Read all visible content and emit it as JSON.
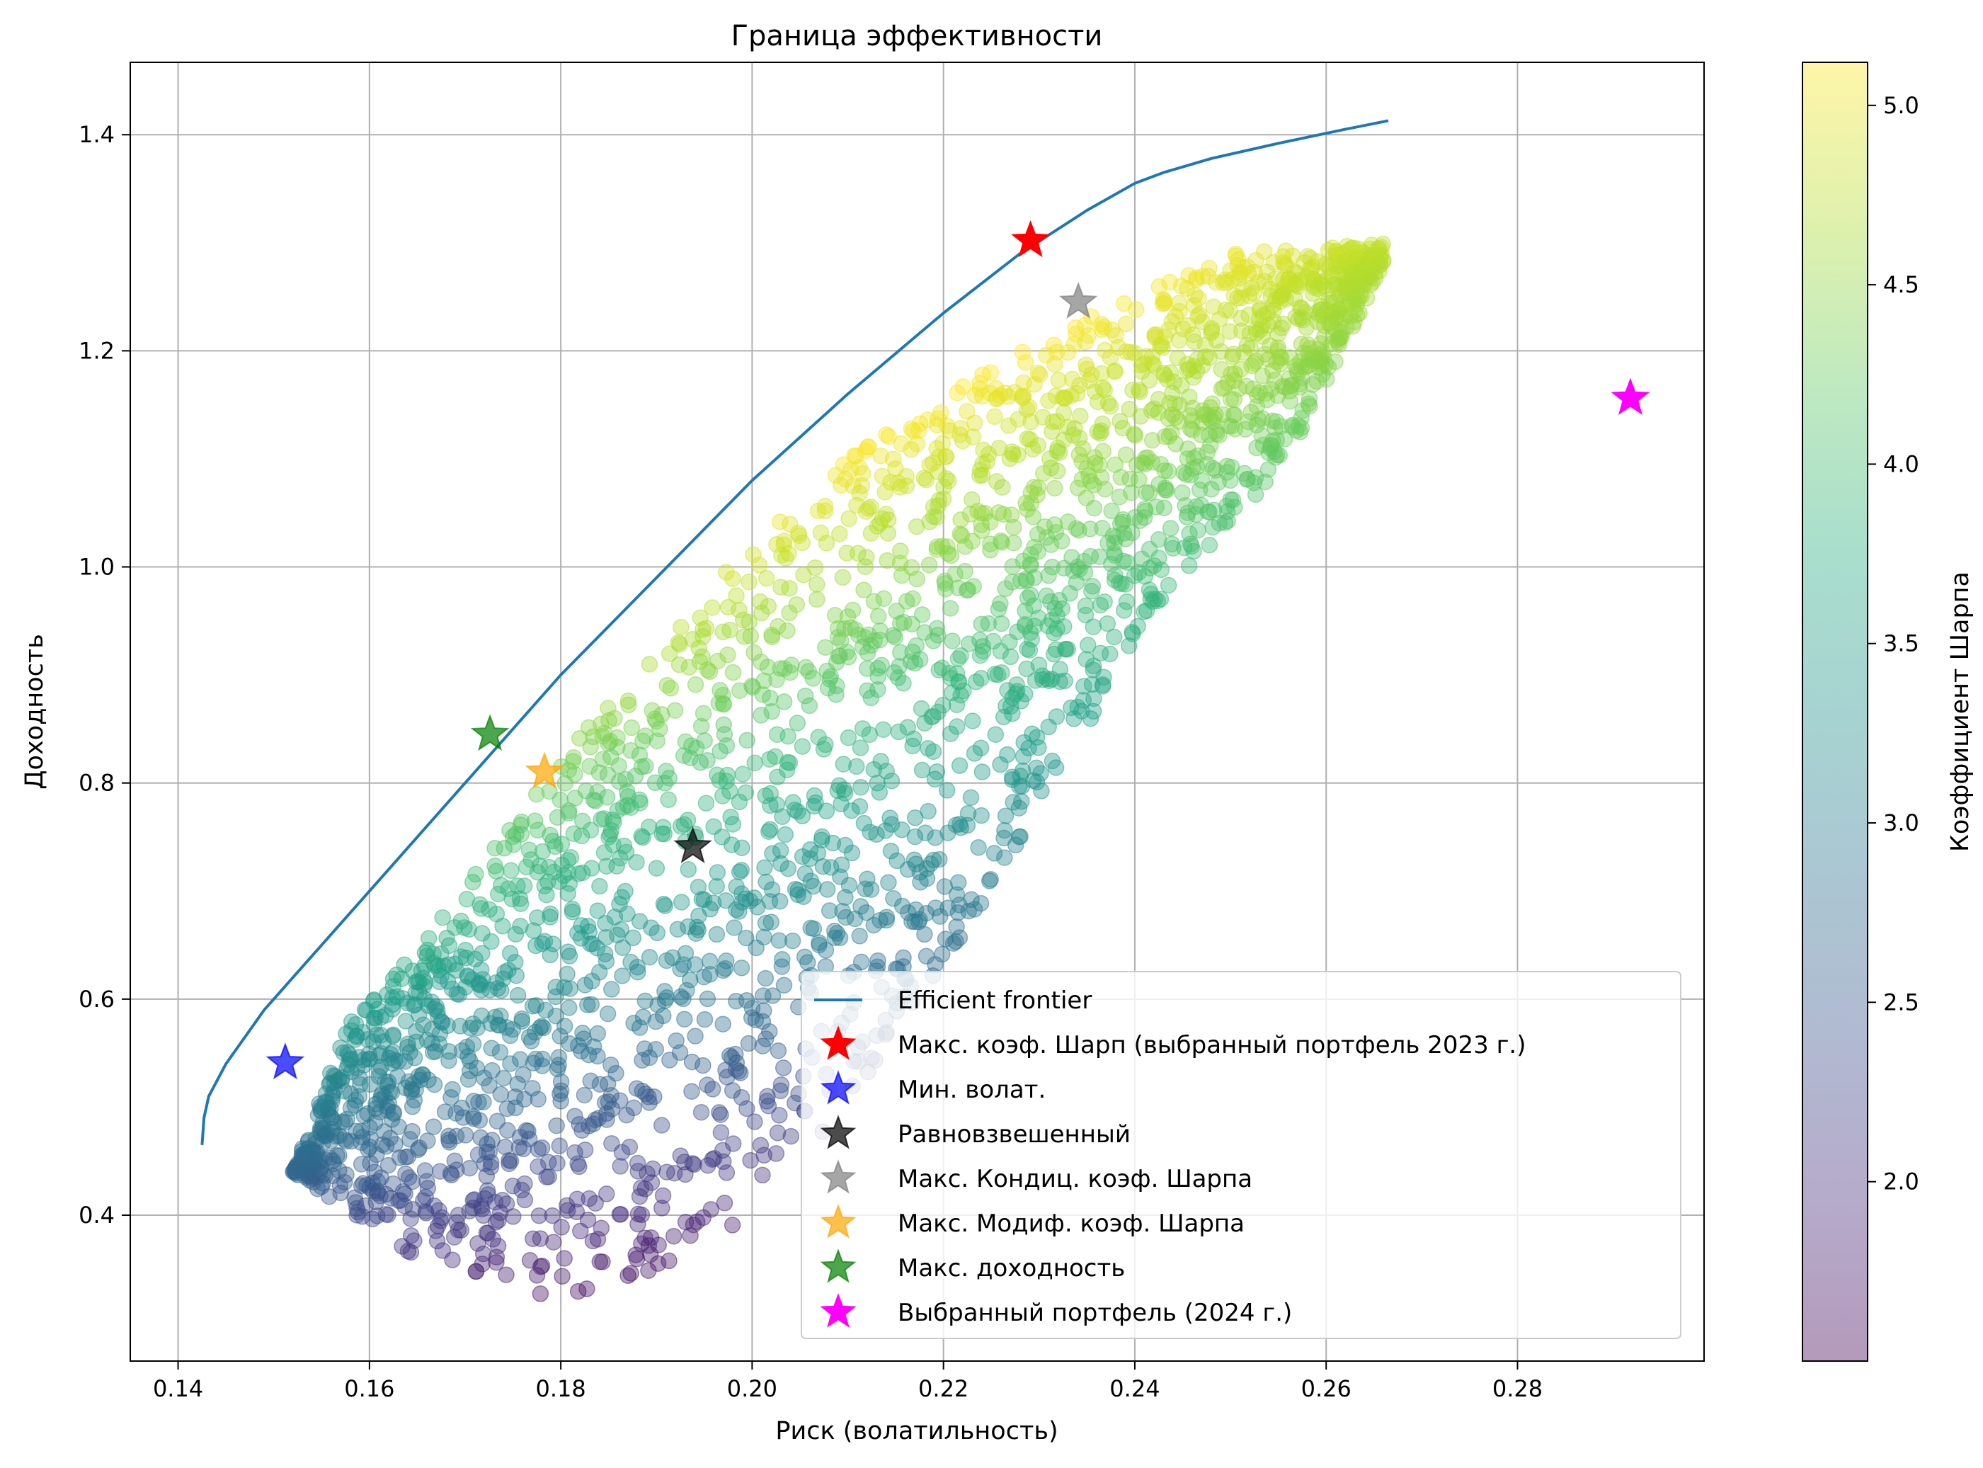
{
  "chart_data": {
    "type": "scatter",
    "title": "Граница эффективности",
    "xlabel": "Риск (волатильность)",
    "ylabel": "Доходность",
    "xlim": [
      0.135,
      0.2995
    ],
    "ylim": [
      0.265,
      1.467
    ],
    "grid": true,
    "x_ticks": [
      "0.14",
      "0.16",
      "0.18",
      "0.20",
      "0.22",
      "0.24",
      "0.26",
      "0.28"
    ],
    "y_ticks": [
      "0.4",
      "0.6",
      "0.8",
      "1.0",
      "1.2",
      "1.4"
    ],
    "colorbar": {
      "label": "Коэффициент Шарпа",
      "colormap": "viridis",
      "alpha": 0.4,
      "range": [
        1.5,
        5.12
      ],
      "ticks": [
        "2.0",
        "2.5",
        "3.0",
        "3.5",
        "4.0",
        "4.5",
        "5.0"
      ]
    },
    "legend_position": "lower right",
    "cloud": {
      "description_lower_boundary_points": [
        [
          0.152,
          0.44
        ],
        [
          0.165,
          0.36
        ],
        [
          0.18,
          0.32
        ],
        [
          0.195,
          0.36
        ],
        [
          0.21,
          0.5
        ],
        [
          0.225,
          0.7
        ],
        [
          0.24,
          0.93
        ],
        [
          0.256,
          1.1
        ],
        [
          0.266,
          1.28
        ]
      ],
      "upper_boundary_points": [
        [
          0.152,
          0.44
        ],
        [
          0.158,
          0.58
        ],
        [
          0.168,
          0.68
        ],
        [
          0.178,
          0.8
        ],
        [
          0.19,
          0.93
        ],
        [
          0.2,
          1.02
        ],
        [
          0.21,
          1.1
        ],
        [
          0.222,
          1.17
        ],
        [
          0.235,
          1.23
        ],
        [
          0.25,
          1.29
        ],
        [
          0.266,
          1.3
        ]
      ],
      "sharpe_range": [
        1.5,
        5.12
      ]
    },
    "series": [
      {
        "name": "Efficient frontier",
        "type": "line",
        "color": "#1f77b4",
        "x": [
          0.1425,
          0.1427,
          0.1432,
          0.145,
          0.149,
          0.155,
          0.162,
          0.171,
          0.18,
          0.19,
          0.2,
          0.21,
          0.22,
          0.228,
          0.235,
          0.24,
          0.243,
          0.248,
          0.255,
          0.262,
          0.2665
        ],
        "y": [
          0.465,
          0.49,
          0.51,
          0.54,
          0.59,
          0.65,
          0.72,
          0.81,
          0.9,
          0.99,
          1.08,
          1.16,
          1.235,
          1.29,
          1.33,
          1.355,
          1.365,
          1.378,
          1.392,
          1.405,
          1.413
        ]
      },
      {
        "name": "Макс. коэф. Шарп (выбранный портфель 2023 г.)",
        "type": "star",
        "color": "#ff0000",
        "alpha": 1.0,
        "x": [
          0.2291
        ],
        "y": [
          1.302
        ]
      },
      {
        "name": "Мин. волат.",
        "type": "star",
        "color": "#0000ff",
        "alpha": 0.7,
        "x": [
          0.1512
        ],
        "y": [
          0.541
        ]
      },
      {
        "name": "Равновзвешенный",
        "type": "star",
        "color": "#000000",
        "alpha": 0.7,
        "x": [
          0.1938
        ],
        "y": [
          0.741
        ]
      },
      {
        "name": "Макс. Кондиц. коэф. Шарпа",
        "type": "star",
        "color": "#808080",
        "alpha": 0.7,
        "x": [
          0.2341
        ],
        "y": [
          1.245
        ]
      },
      {
        "name": "Макс. Модиф. коэф. Шарпа",
        "type": "star",
        "color": "#ffa500",
        "alpha": 0.7,
        "x": [
          0.1783
        ],
        "y": [
          0.81
        ]
      },
      {
        "name": "Макс. доходность",
        "type": "star",
        "color": "#008000",
        "alpha": 0.7,
        "x": [
          0.1726
        ],
        "y": [
          0.845
        ]
      },
      {
        "name": "Выбранный портфель (2024 г.)",
        "type": "star",
        "color": "#ff00ff",
        "alpha": 1.0,
        "x": [
          0.2918
        ],
        "y": [
          1.156
        ]
      }
    ]
  }
}
